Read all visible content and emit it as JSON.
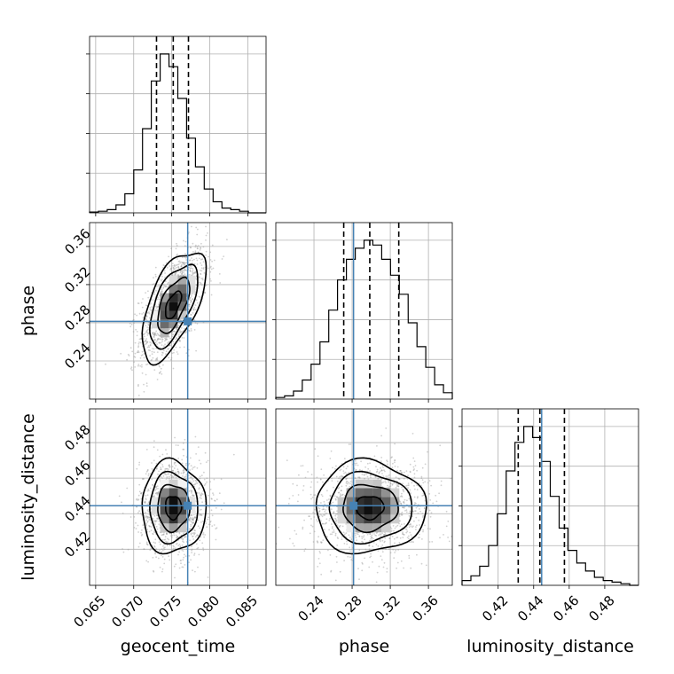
{
  "chart_data": {
    "type": "corner",
    "parameters": [
      "geocent_time",
      "phase",
      "luminosity_distance"
    ],
    "truths": {
      "geocent_time": 0.0771,
      "phase": 0.2815,
      "luminosity_distance": 0.4445,
      "color": "#4682b4"
    },
    "quantiles": {
      "geocent_time": [
        0.073,
        0.0752,
        0.0772
      ],
      "phase": [
        0.2712,
        0.2985,
        0.3289
      ],
      "luminosity_distance": [
        0.4313,
        0.4435,
        0.4573
      ]
    },
    "ranges": {
      "geocent_time": [
        0.0642,
        0.0874
      ],
      "phase": [
        0.2,
        0.385
      ],
      "luminosity_distance": [
        0.3997,
        0.499
      ]
    },
    "ticks": {
      "geocent_time": [
        0.065,
        0.07,
        0.075,
        0.08,
        0.085
      ],
      "phase": [
        0.24,
        0.28,
        0.32,
        0.36
      ],
      "luminosity_distance": [
        0.42,
        0.44,
        0.46,
        0.48
      ]
    },
    "tick_labels": {
      "geocent_time": [
        "0.065",
        "0.070",
        "0.075",
        "0.080",
        "0.085"
      ],
      "phase": [
        "0.24",
        "0.28",
        "0.32",
        "0.36"
      ],
      "luminosity_distance": [
        "0.42",
        "0.44",
        "0.46",
        "0.48"
      ]
    },
    "histograms": {
      "geocent_time": [
        0.005,
        0.01,
        0.02,
        0.05,
        0.12,
        0.27,
        0.53,
        0.83,
        1.0,
        0.92,
        0.72,
        0.47,
        0.29,
        0.15,
        0.07,
        0.03,
        0.02,
        0.01,
        0.0,
        0.0
      ],
      "phase": [
        0.01,
        0.02,
        0.05,
        0.12,
        0.22,
        0.36,
        0.56,
        0.75,
        0.88,
        0.95,
        1.0,
        0.97,
        0.88,
        0.78,
        0.66,
        0.48,
        0.33,
        0.2,
        0.09,
        0.04
      ],
      "luminosity_distance": [
        0.03,
        0.06,
        0.12,
        0.25,
        0.45,
        0.72,
        0.9,
        1.0,
        0.93,
        0.78,
        0.56,
        0.36,
        0.22,
        0.14,
        0.09,
        0.05,
        0.03,
        0.02,
        0.01,
        0.0
      ]
    },
    "grid": true,
    "xlabel_bottom": [
      "geocent_time",
      "phase",
      "luminosity_distance"
    ],
    "ylabel_left": [
      "phase",
      "luminosity_distance"
    ]
  }
}
